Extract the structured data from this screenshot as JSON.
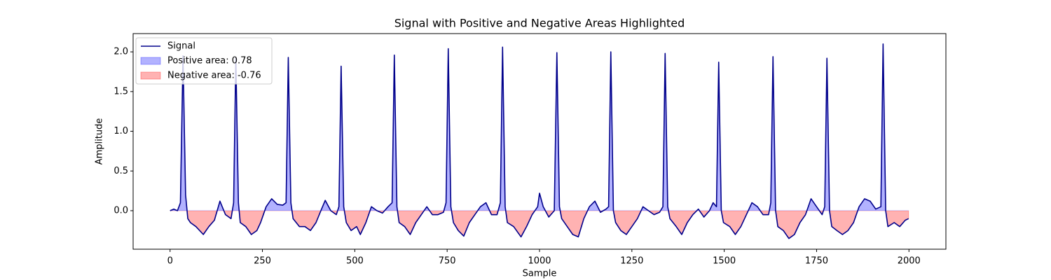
{
  "chart_data": {
    "type": "line",
    "title": "Signal with Positive and Negative Areas Highlighted",
    "xlabel": "Sample",
    "ylabel": "Amplitude",
    "x": [
      0,
      10,
      20,
      28,
      35,
      42,
      48,
      55,
      70,
      90,
      105,
      120,
      135,
      150,
      165,
      172,
      178,
      185,
      190,
      205,
      220,
      235,
      245,
      260,
      275,
      290,
      305,
      314,
      320,
      327,
      333,
      350,
      365,
      380,
      395,
      410,
      420,
      435,
      450,
      457,
      463,
      470,
      477,
      490,
      505,
      515,
      530,
      545,
      560,
      575,
      590,
      601,
      607,
      614,
      620,
      635,
      650,
      665,
      680,
      695,
      710,
      725,
      740,
      747,
      753,
      760,
      767,
      780,
      795,
      810,
      825,
      840,
      855,
      870,
      885,
      894,
      900,
      907,
      913,
      930,
      950,
      965,
      980,
      995,
      1000,
      1010,
      1025,
      1040,
      1047,
      1054,
      1060,
      1075,
      1090,
      1105,
      1120,
      1135,
      1150,
      1165,
      1180,
      1187,
      1193,
      1200,
      1206,
      1220,
      1235,
      1250,
      1265,
      1280,
      1295,
      1310,
      1325,
      1334,
      1340,
      1347,
      1353,
      1370,
      1385,
      1400,
      1415,
      1430,
      1445,
      1460,
      1470,
      1479,
      1485,
      1492,
      1498,
      1515,
      1530,
      1545,
      1560,
      1575,
      1590,
      1605,
      1620,
      1626,
      1632,
      1639,
      1645,
      1660,
      1675,
      1690,
      1705,
      1720,
      1735,
      1750,
      1765,
      1772,
      1778,
      1785,
      1791,
      1805,
      1820,
      1835,
      1850,
      1865,
      1880,
      1895,
      1910,
      1924,
      1930,
      1937,
      1943,
      1960,
      1975,
      1990,
      1999
    ],
    "series": [
      {
        "name": "Signal",
        "color": "#00008b",
        "values": [
          0.0,
          0.02,
          0.0,
          0.1,
          1.95,
          0.2,
          -0.1,
          -0.15,
          -0.2,
          -0.3,
          -0.2,
          -0.12,
          0.12,
          -0.05,
          -0.1,
          0.1,
          1.93,
          0.1,
          -0.15,
          -0.2,
          -0.3,
          -0.25,
          -0.15,
          0.05,
          0.15,
          0.08,
          0.07,
          0.1,
          1.93,
          0.1,
          -0.1,
          -0.2,
          -0.2,
          -0.25,
          -0.15,
          0.02,
          0.13,
          0.0,
          -0.05,
          0.05,
          1.82,
          0.05,
          -0.15,
          -0.25,
          -0.2,
          -0.3,
          -0.15,
          0.05,
          0.0,
          -0.03,
          0.05,
          0.1,
          1.96,
          0.05,
          -0.15,
          -0.2,
          -0.3,
          -0.15,
          -0.05,
          0.05,
          -0.05,
          -0.05,
          -0.02,
          0.1,
          2.04,
          0.05,
          -0.15,
          -0.25,
          -0.32,
          -0.15,
          -0.05,
          0.05,
          0.1,
          -0.05,
          -0.05,
          0.1,
          2.06,
          0.05,
          -0.15,
          -0.2,
          -0.33,
          -0.2,
          -0.05,
          0.05,
          0.22,
          0.05,
          -0.08,
          0.0,
          1.99,
          0.05,
          -0.1,
          -0.2,
          -0.3,
          -0.33,
          -0.1,
          0.05,
          0.12,
          -0.02,
          0.02,
          0.05,
          2.0,
          0.0,
          -0.15,
          -0.25,
          -0.3,
          -0.2,
          -0.1,
          0.05,
          0.0,
          -0.05,
          -0.02,
          0.05,
          1.98,
          0.05,
          -0.1,
          -0.2,
          -0.3,
          -0.15,
          -0.05,
          0.02,
          -0.08,
          0.0,
          0.1,
          0.05,
          1.87,
          0.0,
          -0.15,
          -0.2,
          -0.3,
          -0.2,
          -0.05,
          0.1,
          0.05,
          -0.05,
          -0.05,
          0.1,
          1.94,
          0.0,
          -0.2,
          -0.25,
          -0.35,
          -0.3,
          -0.15,
          -0.05,
          0.15,
          0.05,
          -0.05,
          0.05,
          1.92,
          0.0,
          -0.2,
          -0.25,
          -0.3,
          -0.25,
          -0.15,
          0.05,
          0.15,
          0.12,
          0.02,
          0.05,
          2.1,
          0.0,
          -0.2,
          -0.15,
          -0.2,
          -0.12,
          -0.1
        ]
      }
    ],
    "areas": [
      {
        "name": "Positive area: 0.78",
        "color": "blue"
      },
      {
        "name": "Negative area: -0.76",
        "color": "red"
      }
    ],
    "xlim": [
      -100,
      2100
    ],
    "xticks": [
      0,
      250,
      500,
      750,
      1000,
      1250,
      1500,
      1750,
      2000
    ],
    "ylim": [
      -0.485,
      2.23
    ],
    "yticks": [
      {
        "value": 0,
        "label": "0.0"
      },
      0.5,
      {
        "value": 1,
        "label": "1.0"
      },
      1.5,
      {
        "value": 2,
        "label": "2.0"
      }
    ]
  }
}
